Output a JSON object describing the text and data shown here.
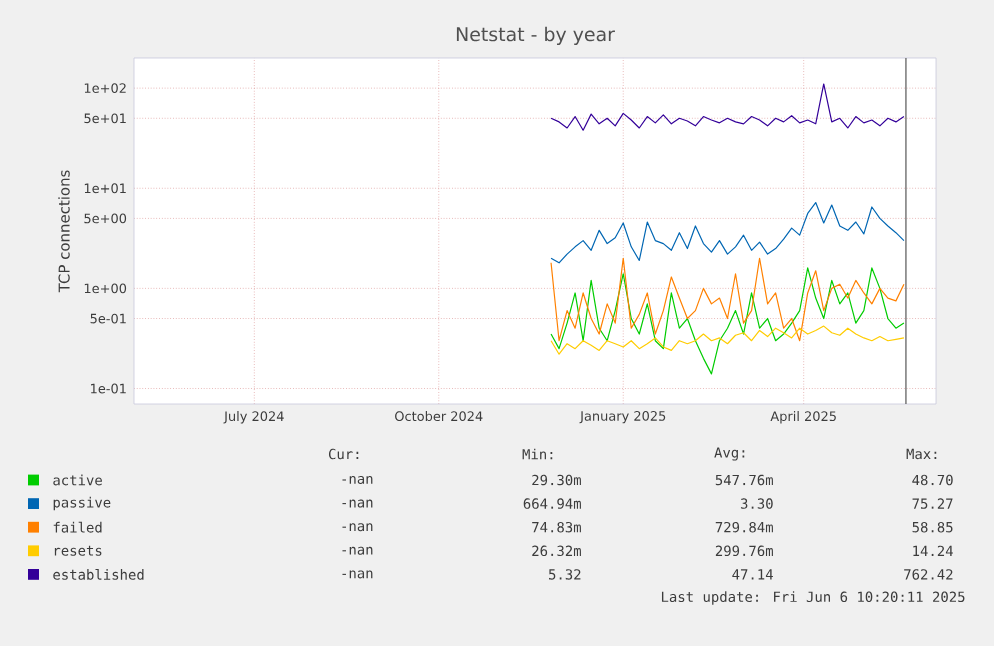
{
  "chart_data": {
    "type": "line",
    "title": "Netstat - by year",
    "ylabel": "TCP connections",
    "log": "y",
    "grid": true,
    "legend": "bottom",
    "xlim": [
      "2024-05-02",
      "2025-06-06"
    ],
    "xticks": [
      {
        "value": "2024-07-01",
        "label": "July 2024"
      },
      {
        "value": "2024-10-01",
        "label": "October 2024"
      },
      {
        "value": "2025-01-01",
        "label": "January 2025"
      },
      {
        "value": "2025-04-01",
        "label": "April 2025"
      }
    ],
    "ylim": [
      0.07,
      200
    ],
    "yticks": [
      {
        "value": 0.1,
        "label": "1e-01"
      },
      {
        "value": 0.5,
        "label": "5e-01"
      },
      {
        "value": 1,
        "label": "1e+00"
      },
      {
        "value": 5,
        "label": "5e+00"
      },
      {
        "value": 10,
        "label": "1e+01"
      },
      {
        "value": 50,
        "label": "5e+01"
      },
      {
        "value": 100,
        "label": "1e+02"
      }
    ],
    "x": [
      "2024-11-26",
      "2024-11-30",
      "2024-12-04",
      "2024-12-08",
      "2024-12-12",
      "2024-12-16",
      "2024-12-20",
      "2024-12-24",
      "2024-12-28",
      "2025-01-01",
      "2025-01-05",
      "2025-01-09",
      "2025-01-13",
      "2025-01-17",
      "2025-01-21",
      "2025-01-25",
      "2025-01-29",
      "2025-02-02",
      "2025-02-06",
      "2025-02-10",
      "2025-02-14",
      "2025-02-18",
      "2025-02-22",
      "2025-02-26",
      "2025-03-02",
      "2025-03-06",
      "2025-03-10",
      "2025-03-14",
      "2025-03-18",
      "2025-03-22",
      "2025-03-26",
      "2025-03-30",
      "2025-04-03",
      "2025-04-07",
      "2025-04-11",
      "2025-04-15",
      "2025-04-19",
      "2025-04-23",
      "2025-04-27",
      "2025-05-01",
      "2025-05-05",
      "2025-05-09",
      "2025-05-13",
      "2025-05-17",
      "2025-05-21"
    ],
    "series": [
      {
        "name": "active",
        "color": "#00cc00",
        "values": [
          0.35,
          0.25,
          0.45,
          0.9,
          0.3,
          1.2,
          0.4,
          0.3,
          0.6,
          1.4,
          0.5,
          0.35,
          0.7,
          0.3,
          0.25,
          0.9,
          0.4,
          0.5,
          0.3,
          0.2,
          0.14,
          0.3,
          0.4,
          0.6,
          0.35,
          0.9,
          0.4,
          0.5,
          0.3,
          0.35,
          0.45,
          0.6,
          1.6,
          0.8,
          0.5,
          1.2,
          0.7,
          0.9,
          0.45,
          0.6,
          1.6,
          1.0,
          0.5,
          0.4,
          0.45
        ]
      },
      {
        "name": "passive",
        "color": "#0066b3",
        "values": [
          2.0,
          1.8,
          2.2,
          2.6,
          3.0,
          2.4,
          3.8,
          2.8,
          3.2,
          4.5,
          2.6,
          1.9,
          4.6,
          3.0,
          2.8,
          2.4,
          3.6,
          2.5,
          4.2,
          2.8,
          2.3,
          3.0,
          2.2,
          2.6,
          3.4,
          2.4,
          2.9,
          2.2,
          2.5,
          3.1,
          4.0,
          3.4,
          5.6,
          7.2,
          4.5,
          6.8,
          4.2,
          3.8,
          4.6,
          3.5,
          6.5,
          5.0,
          4.2,
          3.6,
          3.0
        ]
      },
      {
        "name": "failed",
        "color": "#ff8000",
        "values": [
          1.8,
          0.3,
          0.6,
          0.4,
          0.9,
          0.5,
          0.35,
          0.7,
          0.45,
          2.0,
          0.4,
          0.55,
          0.9,
          0.35,
          0.6,
          1.3,
          0.8,
          0.5,
          0.6,
          1.0,
          0.7,
          0.8,
          0.5,
          1.4,
          0.45,
          0.6,
          2.0,
          0.7,
          0.9,
          0.4,
          0.5,
          0.3,
          0.9,
          1.5,
          0.6,
          1.0,
          1.1,
          0.8,
          1.2,
          0.9,
          0.7,
          1.0,
          0.8,
          0.75,
          1.1
        ]
      },
      {
        "name": "resets",
        "color": "#ffcc00",
        "values": [
          0.3,
          0.22,
          0.28,
          0.25,
          0.3,
          0.27,
          0.24,
          0.3,
          0.28,
          0.26,
          0.3,
          0.25,
          0.28,
          0.32,
          0.26,
          0.24,
          0.3,
          0.28,
          0.3,
          0.35,
          0.3,
          0.32,
          0.28,
          0.34,
          0.36,
          0.3,
          0.38,
          0.33,
          0.4,
          0.36,
          0.32,
          0.4,
          0.35,
          0.38,
          0.42,
          0.36,
          0.34,
          0.4,
          0.35,
          0.32,
          0.3,
          0.33,
          0.3,
          0.31,
          0.32
        ]
      },
      {
        "name": "established",
        "color": "#330099",
        "values": [
          50,
          46,
          40,
          52,
          38,
          55,
          44,
          50,
          42,
          56,
          48,
          40,
          52,
          45,
          54,
          44,
          50,
          47,
          42,
          52,
          48,
          45,
          50,
          46,
          44,
          52,
          48,
          42,
          50,
          46,
          53,
          45,
          48,
          44,
          110,
          46,
          50,
          40,
          52,
          45,
          48,
          42,
          50,
          46,
          52
        ]
      }
    ],
    "ref_lines": [
      {
        "axis": "x",
        "value": "2025-05-22",
        "color": "#555555"
      }
    ],
    "annotations": [
      "Cur:",
      "Min:",
      "Avg:",
      "Max:",
      "-nan",
      "29.30m",
      "547.76m",
      "48.70",
      "-nan",
      "664.94m",
      "3.30",
      "75.27",
      "-nan",
      "74.83m",
      "729.84m",
      "58.85",
      "-nan",
      "26.32m",
      "299.76m",
      "14.24",
      "-nan",
      "5.32",
      "47.14",
      "762.42",
      "Last update: Fri Jun  6 10:20:11 2025"
    ]
  }
}
